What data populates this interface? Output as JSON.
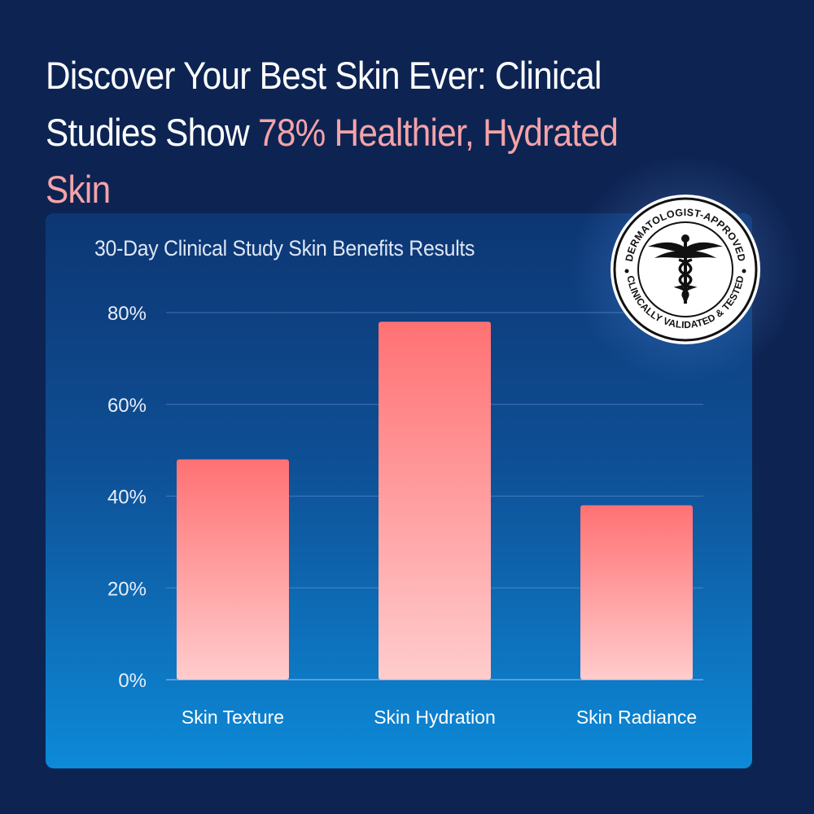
{
  "headline": {
    "part1": "Discover Your Best Skin Ever: Clinical Studies Show ",
    "highlight": "78% Healthier, Hydrated Skin"
  },
  "badge": {
    "top_text": "DERMATOLOGIST-APPROVED",
    "bottom_text": "CLINICALLY VALIDATED & TESTED",
    "icon": "caduceus-icon"
  },
  "colors": {
    "background": "#0d2453",
    "accent": "#f5a3a8",
    "bar_top": "#ff7173",
    "bar_bottom": "#ffcccd"
  },
  "chart_data": {
    "type": "bar",
    "title": "30-Day Clinical Study Skin Benefits Results",
    "categories": [
      "Skin Texture",
      "Skin Hydration",
      "Skin Radiance"
    ],
    "values": [
      48,
      78,
      38
    ],
    "ylim": [
      0,
      80
    ],
    "yticks": [
      "0%",
      "20%",
      "40%",
      "60%",
      "80%"
    ],
    "xlabel": "",
    "ylabel": "",
    "grid": true,
    "legend": "none"
  }
}
